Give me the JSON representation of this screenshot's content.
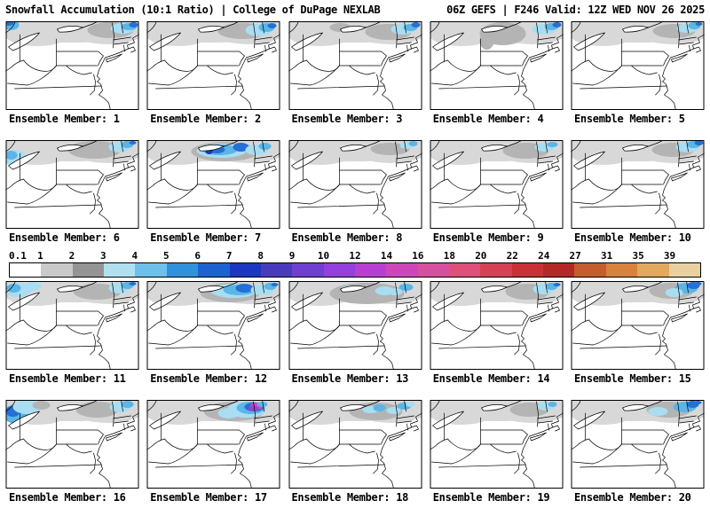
{
  "header": {
    "left_title": "Snowfall Accumulation (10:1 Ratio) | College of DuPage NEXLAB",
    "right_title": "06Z GEFS | F246 Valid: 12Z WED NOV 26 2025"
  },
  "colorbar": {
    "ticks": [
      "0.1",
      "1",
      "2",
      "3",
      "4",
      "5",
      "6",
      "7",
      "8",
      "9",
      "10",
      "12",
      "14",
      "16",
      "18",
      "20",
      "22",
      "24",
      "27",
      "31",
      "35",
      "39"
    ],
    "colors": [
      "#ffffff",
      "#c9c9c9",
      "#949494",
      "#b0e0f0",
      "#6cc0ea",
      "#2e93dc",
      "#1b62d2",
      "#1b35c4",
      "#4a3bbe",
      "#6f3fd2",
      "#9440dc",
      "#b93fd4",
      "#cf46bb",
      "#d94f9f",
      "#df4f7a",
      "#d84054",
      "#c93137",
      "#b52828",
      "#c75c2e",
      "#d8823c",
      "#e2a95c",
      "#e8d0a0"
    ]
  },
  "map": {
    "palette": {
      "g1": "#d8d8d8",
      "g2": "#b4b4b4",
      "b1": "#a9ddf2",
      "b2": "#5bb5e6",
      "b3": "#2470d4",
      "b4": "#1b35c4",
      "p1": "#8a4ad6",
      "m1": "#cf46bb"
    },
    "base_blobs": [
      [
        75,
        8,
        85,
        16,
        "g1"
      ],
      [
        35,
        16,
        35,
        12,
        "g1"
      ],
      [
        115,
        12,
        40,
        14,
        "g1"
      ]
    ]
  },
  "panels": [
    {
      "member": 1,
      "label": "Ensemble Member: 1",
      "blobs": [
        [
          118,
          10,
          26,
          9,
          "g2"
        ],
        [
          132,
          8,
          14,
          6,
          "b1"
        ],
        [
          139,
          6,
          9,
          4,
          "b2"
        ],
        [
          144,
          4,
          5,
          3,
          "b3"
        ],
        [
          6,
          4,
          9,
          6,
          "b2"
        ],
        [
          4,
          2,
          5,
          3,
          "b3"
        ]
      ]
    },
    {
      "member": 2,
      "label": "Ensemble Member: 2",
      "blobs": [
        [
          108,
          11,
          28,
          9,
          "g2"
        ],
        [
          126,
          10,
          15,
          7,
          "b1"
        ],
        [
          135,
          7,
          9,
          5,
          "b2"
        ],
        [
          141,
          5,
          5,
          3,
          "b3"
        ]
      ]
    },
    {
      "member": 3,
      "label": "Ensemble Member: 3",
      "blobs": [
        [
          112,
          12,
          26,
          9,
          "g2"
        ],
        [
          128,
          9,
          13,
          6,
          "b1"
        ],
        [
          137,
          7,
          8,
          4,
          "b2"
        ],
        [
          58,
          7,
          12,
          5,
          "g2"
        ],
        [
          143,
          4,
          5,
          3,
          "b3"
        ]
      ]
    },
    {
      "member": 4,
      "label": "Ensemble Member: 4",
      "blobs": [
        [
          82,
          14,
          26,
          13,
          "g2"
        ],
        [
          64,
          22,
          8,
          10,
          "g2"
        ],
        [
          128,
          9,
          13,
          6,
          "b1"
        ],
        [
          137,
          6,
          8,
          4,
          "b2"
        ],
        [
          143,
          4,
          5,
          3,
          "b3"
        ]
      ]
    },
    {
      "member": 5,
      "label": "Ensemble Member: 5",
      "blobs": [
        [
          116,
          11,
          24,
          8,
          "g2"
        ],
        [
          131,
          8,
          12,
          5,
          "b1"
        ],
        [
          139,
          5,
          7,
          4,
          "b2"
        ],
        [
          144,
          3,
          4,
          2,
          "b3"
        ]
      ]
    },
    {
      "member": 6,
      "label": "Ensemble Member: 6",
      "blobs": [
        [
          10,
          20,
          13,
          9,
          "b1"
        ],
        [
          6,
          17,
          7,
          5,
          "b2"
        ],
        [
          100,
          11,
          30,
          10,
          "g2"
        ],
        [
          128,
          8,
          12,
          6,
          "b1"
        ],
        [
          137,
          5,
          7,
          4,
          "b2"
        ],
        [
          143,
          3,
          4,
          2,
          "b3"
        ]
      ]
    },
    {
      "member": 7,
      "label": "Ensemble Member: 7",
      "blobs": [
        [
          88,
          13,
          38,
          11,
          "g2"
        ],
        [
          84,
          12,
          28,
          8,
          "b1"
        ],
        [
          82,
          11,
          20,
          6,
          "b2"
        ],
        [
          78,
          11,
          10,
          4,
          "b3"
        ],
        [
          106,
          8,
          9,
          5,
          "b3"
        ],
        [
          124,
          11,
          13,
          6,
          "b1"
        ],
        [
          70,
          13,
          4,
          3,
          "b4"
        ],
        [
          133,
          7,
          7,
          4,
          "b2"
        ]
      ]
    },
    {
      "member": 8,
      "label": "Ensemble Member: 8",
      "blobs": [
        [
          114,
          10,
          22,
          7,
          "g2"
        ],
        [
          133,
          6,
          8,
          4,
          "b1"
        ],
        [
          140,
          4,
          5,
          3,
          "b2"
        ]
      ]
    },
    {
      "member": 9,
      "label": "Ensemble Member: 9",
      "blobs": [
        [
          108,
          12,
          26,
          9,
          "g2"
        ],
        [
          129,
          8,
          11,
          5,
          "b1"
        ],
        [
          138,
          5,
          6,
          3,
          "b2"
        ]
      ]
    },
    {
      "member": 10,
      "label": "Ensemble Member: 10",
      "blobs": [
        [
          115,
          11,
          24,
          8,
          "g2"
        ],
        [
          131,
          8,
          13,
          6,
          "b1"
        ],
        [
          138,
          5,
          8,
          4,
          "b2"
        ],
        [
          144,
          3,
          5,
          3,
          "b3"
        ]
      ]
    },
    {
      "member": 11,
      "label": "Ensemble Member: 11",
      "blobs": [
        [
          14,
          10,
          15,
          8,
          "b1"
        ],
        [
          9,
          8,
          8,
          5,
          "b2"
        ],
        [
          30,
          6,
          10,
          5,
          "b1"
        ],
        [
          103,
          12,
          27,
          9,
          "g2"
        ],
        [
          128,
          8,
          12,
          6,
          "b1"
        ],
        [
          137,
          5,
          7,
          4,
          "b2"
        ],
        [
          143,
          3,
          4,
          2,
          "b3"
        ]
      ]
    },
    {
      "member": 12,
      "label": "Ensemble Member: 12",
      "blobs": [
        [
          94,
          13,
          34,
          11,
          "g2"
        ],
        [
          98,
          11,
          26,
          8,
          "b1"
        ],
        [
          104,
          10,
          18,
          6,
          "b2"
        ],
        [
          110,
          8,
          10,
          5,
          "b3"
        ],
        [
          130,
          10,
          13,
          6,
          "b1"
        ],
        [
          139,
          6,
          7,
          4,
          "b2"
        ],
        [
          144,
          4,
          4,
          2,
          "b3"
        ]
      ]
    },
    {
      "member": 13,
      "label": "Ensemble Member: 13",
      "blobs": [
        [
          88,
          14,
          42,
          12,
          "g2"
        ],
        [
          108,
          11,
          11,
          5,
          "b1"
        ],
        [
          68,
          9,
          9,
          4,
          "b1"
        ],
        [
          132,
          7,
          8,
          4,
          "b2"
        ],
        [
          120,
          12,
          8,
          4,
          "b1"
        ]
      ]
    },
    {
      "member": 14,
      "label": "Ensemble Member: 14",
      "blobs": [
        [
          110,
          12,
          25,
          9,
          "g2"
        ],
        [
          128,
          9,
          12,
          6,
          "b1"
        ],
        [
          137,
          6,
          7,
          4,
          "b2"
        ],
        [
          143,
          4,
          4,
          2,
          "b3"
        ]
      ]
    },
    {
      "member": 15,
      "label": "Ensemble Member: 15",
      "blobs": [
        [
          113,
          11,
          25,
          9,
          "g2"
        ],
        [
          130,
          8,
          13,
          6,
          "b2"
        ],
        [
          138,
          5,
          7,
          4,
          "b3"
        ],
        [
          116,
          13,
          10,
          5,
          "b1"
        ],
        [
          143,
          3,
          4,
          2,
          "b3"
        ]
      ]
    },
    {
      "member": 16,
      "label": "Ensemble Member: 16",
      "blobs": [
        [
          12,
          16,
          15,
          11,
          "b2"
        ],
        [
          8,
          13,
          8,
          6,
          "b3"
        ],
        [
          24,
          8,
          16,
          8,
          "b1"
        ],
        [
          40,
          6,
          10,
          5,
          "g2"
        ],
        [
          103,
          11,
          24,
          9,
          "g2"
        ],
        [
          129,
          8,
          12,
          6,
          "b1"
        ],
        [
          137,
          5,
          7,
          4,
          "b2"
        ]
      ]
    },
    {
      "member": 17,
      "label": "Ensemble Member: 17",
      "blobs": [
        [
          98,
          13,
          34,
          11,
          "g2"
        ],
        [
          112,
          11,
          22,
          9,
          "b1"
        ],
        [
          117,
          9,
          16,
          7,
          "b2"
        ],
        [
          121,
          8,
          11,
          5,
          "b3"
        ],
        [
          124,
          7,
          8,
          4,
          "m1"
        ],
        [
          120,
          10,
          6,
          3,
          "p1"
        ],
        [
          92,
          15,
          12,
          6,
          "b1"
        ],
        [
          130,
          5,
          6,
          3,
          "b2"
        ]
      ]
    },
    {
      "member": 18,
      "label": "Ensemble Member: 18",
      "blobs": [
        [
          98,
          13,
          30,
          10,
          "g2"
        ],
        [
          92,
          11,
          9,
          4,
          "b1"
        ],
        [
          102,
          9,
          7,
          4,
          "b2"
        ],
        [
          118,
          12,
          8,
          4,
          "b1"
        ],
        [
          130,
          7,
          8,
          4,
          "b2"
        ],
        [
          137,
          5,
          5,
          3,
          "b1"
        ]
      ]
    },
    {
      "member": 19,
      "label": "Ensemble Member: 19",
      "blobs": [
        [
          112,
          11,
          22,
          8,
          "g2"
        ],
        [
          131,
          7,
          10,
          5,
          "b1"
        ],
        [
          138,
          5,
          5,
          3,
          "b2"
        ]
      ]
    },
    {
      "member": 20,
      "label": "Ensemble Member: 20",
      "blobs": [
        [
          110,
          11,
          25,
          9,
          "g2"
        ],
        [
          128,
          8,
          13,
          6,
          "b2"
        ],
        [
          137,
          5,
          7,
          4,
          "b3"
        ],
        [
          98,
          13,
          11,
          5,
          "b1"
        ],
        [
          143,
          3,
          4,
          2,
          "b3"
        ]
      ]
    }
  ]
}
